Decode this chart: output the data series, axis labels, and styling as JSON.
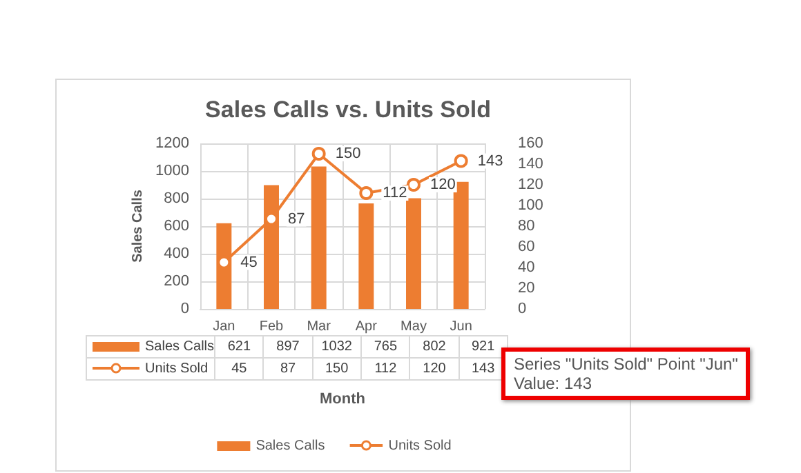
{
  "chart_data": {
    "type": "bar",
    "title": "Sales Calls vs. Units Sold",
    "xlabel": "Month",
    "ylabel": "Sales Calls",
    "categories": [
      "Jan",
      "Feb",
      "Mar",
      "Apr",
      "May",
      "Jun"
    ],
    "series": [
      {
        "name": "Sales Calls",
        "color": "#ed7d31",
        "values": [
          621,
          897,
          1032,
          765,
          802,
          921
        ]
      },
      {
        "name": "Units Sold",
        "type": "line",
        "axis": "y2",
        "color": "#ed7d31",
        "marker": "circle",
        "values": [
          45,
          87,
          150,
          112,
          120,
          143
        ],
        "value_labels": [
          "45",
          "87",
          "150",
          "112",
          "120",
          "143"
        ]
      }
    ],
    "ylim": [
      0,
      1200
    ],
    "yticks": [
      0,
      200,
      400,
      600,
      800,
      1000,
      1200
    ],
    "y2lim": [
      0,
      160
    ],
    "y2ticks": [
      0,
      20,
      40,
      60,
      80,
      100,
      120,
      140,
      160
    ],
    "data_labels": true,
    "grid": true,
    "legend": "bottom",
    "annotations": [
      "Series \"Units Sold\" Point \"Jun\"",
      "Value: 143"
    ]
  }
}
